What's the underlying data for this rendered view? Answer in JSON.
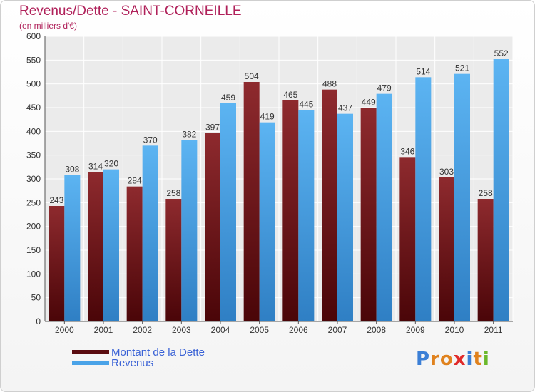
{
  "title": "Revenus/Dette - SAINT-CORNEILLE",
  "subtitle": "(en milliers d'€)",
  "logo": {
    "text": "Proxiti",
    "letters": [
      "P",
      "r",
      "o",
      "x",
      "i",
      "t",
      "i"
    ]
  },
  "chart_data": {
    "type": "bar",
    "categories": [
      "2000",
      "2001",
      "2002",
      "2003",
      "2004",
      "2005",
      "2006",
      "2007",
      "2008",
      "2009",
      "2010",
      "2011"
    ],
    "series": [
      {
        "name": "Montant de la Dette",
        "values": [
          243,
          314,
          284,
          258,
          397,
          504,
          465,
          488,
          449,
          346,
          303,
          258
        ],
        "color": "#7a1a1e"
      },
      {
        "name": "Revenus",
        "values": [
          308,
          320,
          370,
          382,
          459,
          419,
          445,
          437,
          479,
          514,
          521,
          552
        ],
        "color": "#4aa3e8"
      }
    ],
    "yticks": [
      0,
      50,
      100,
      150,
      200,
      250,
      300,
      350,
      400,
      450,
      500,
      550,
      600
    ],
    "ylim": [
      0,
      600
    ],
    "grid": true,
    "legend": "bottom-left",
    "title": "Revenus/Dette - SAINT-CORNEILLE",
    "ylabel": "(en milliers d'€)"
  }
}
